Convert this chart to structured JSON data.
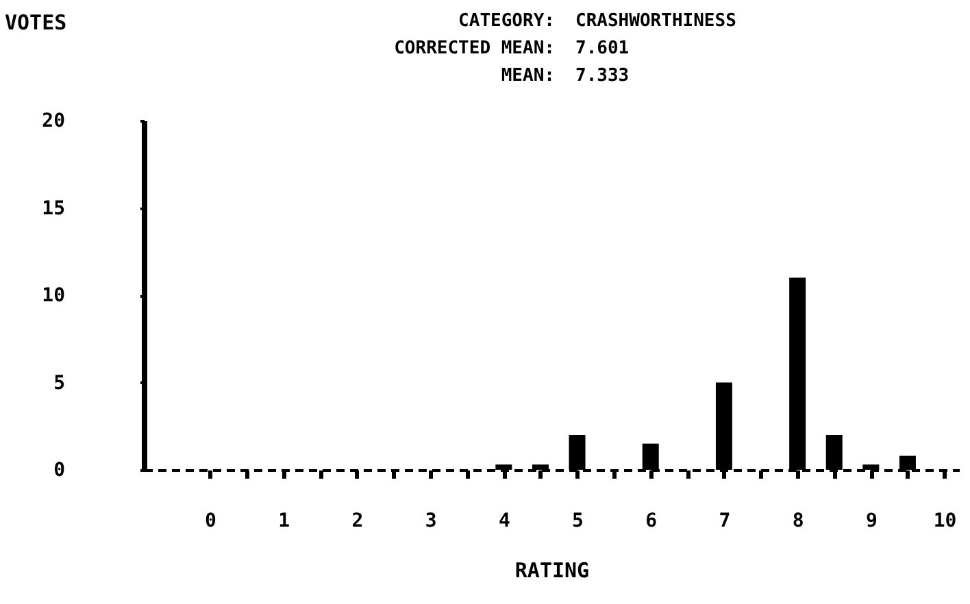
{
  "chart_data": {
    "type": "bar",
    "xlabel": "RATING",
    "ylabel": "VOTES",
    "annotations": [
      "CATEGORY: CRASHWORTHINESS",
      "CORRECTED MEAN: 7.601",
      "MEAN: 7.333"
    ],
    "x": [
      0,
      0.5,
      1,
      1.5,
      2,
      2.5,
      3,
      3.5,
      4,
      4.5,
      5,
      5.5,
      6,
      6.5,
      7,
      7.5,
      8,
      8.5,
      9,
      9.5,
      10
    ],
    "values": [
      0,
      0,
      0,
      0,
      0,
      0,
      0,
      0,
      0.3,
      0.3,
      2,
      0,
      1.5,
      0,
      5,
      0,
      11,
      2,
      0.3,
      0.8,
      0
    ],
    "color": "#000000",
    "xlim": [
      -0.9,
      10.2
    ],
    "xticks": [
      0,
      {
        "value": 0.5,
        "label": null
      },
      1,
      {
        "value": 1.5,
        "label": null
      },
      2,
      {
        "value": 2.5,
        "label": null
      },
      3,
      {
        "value": 3.5,
        "label": null
      },
      4,
      {
        "value": 4.5,
        "label": null
      },
      5,
      {
        "value": 5.5,
        "label": null
      },
      6,
      {
        "value": 6.5,
        "label": null
      },
      7,
      {
        "value": 7.5,
        "label": null
      },
      8,
      {
        "value": 8.5,
        "label": null
      },
      9,
      {
        "value": 9.5,
        "label": null
      },
      10
    ],
    "ylim": [
      0,
      20
    ],
    "yticks": [
      0,
      5,
      10,
      15,
      20
    ]
  }
}
